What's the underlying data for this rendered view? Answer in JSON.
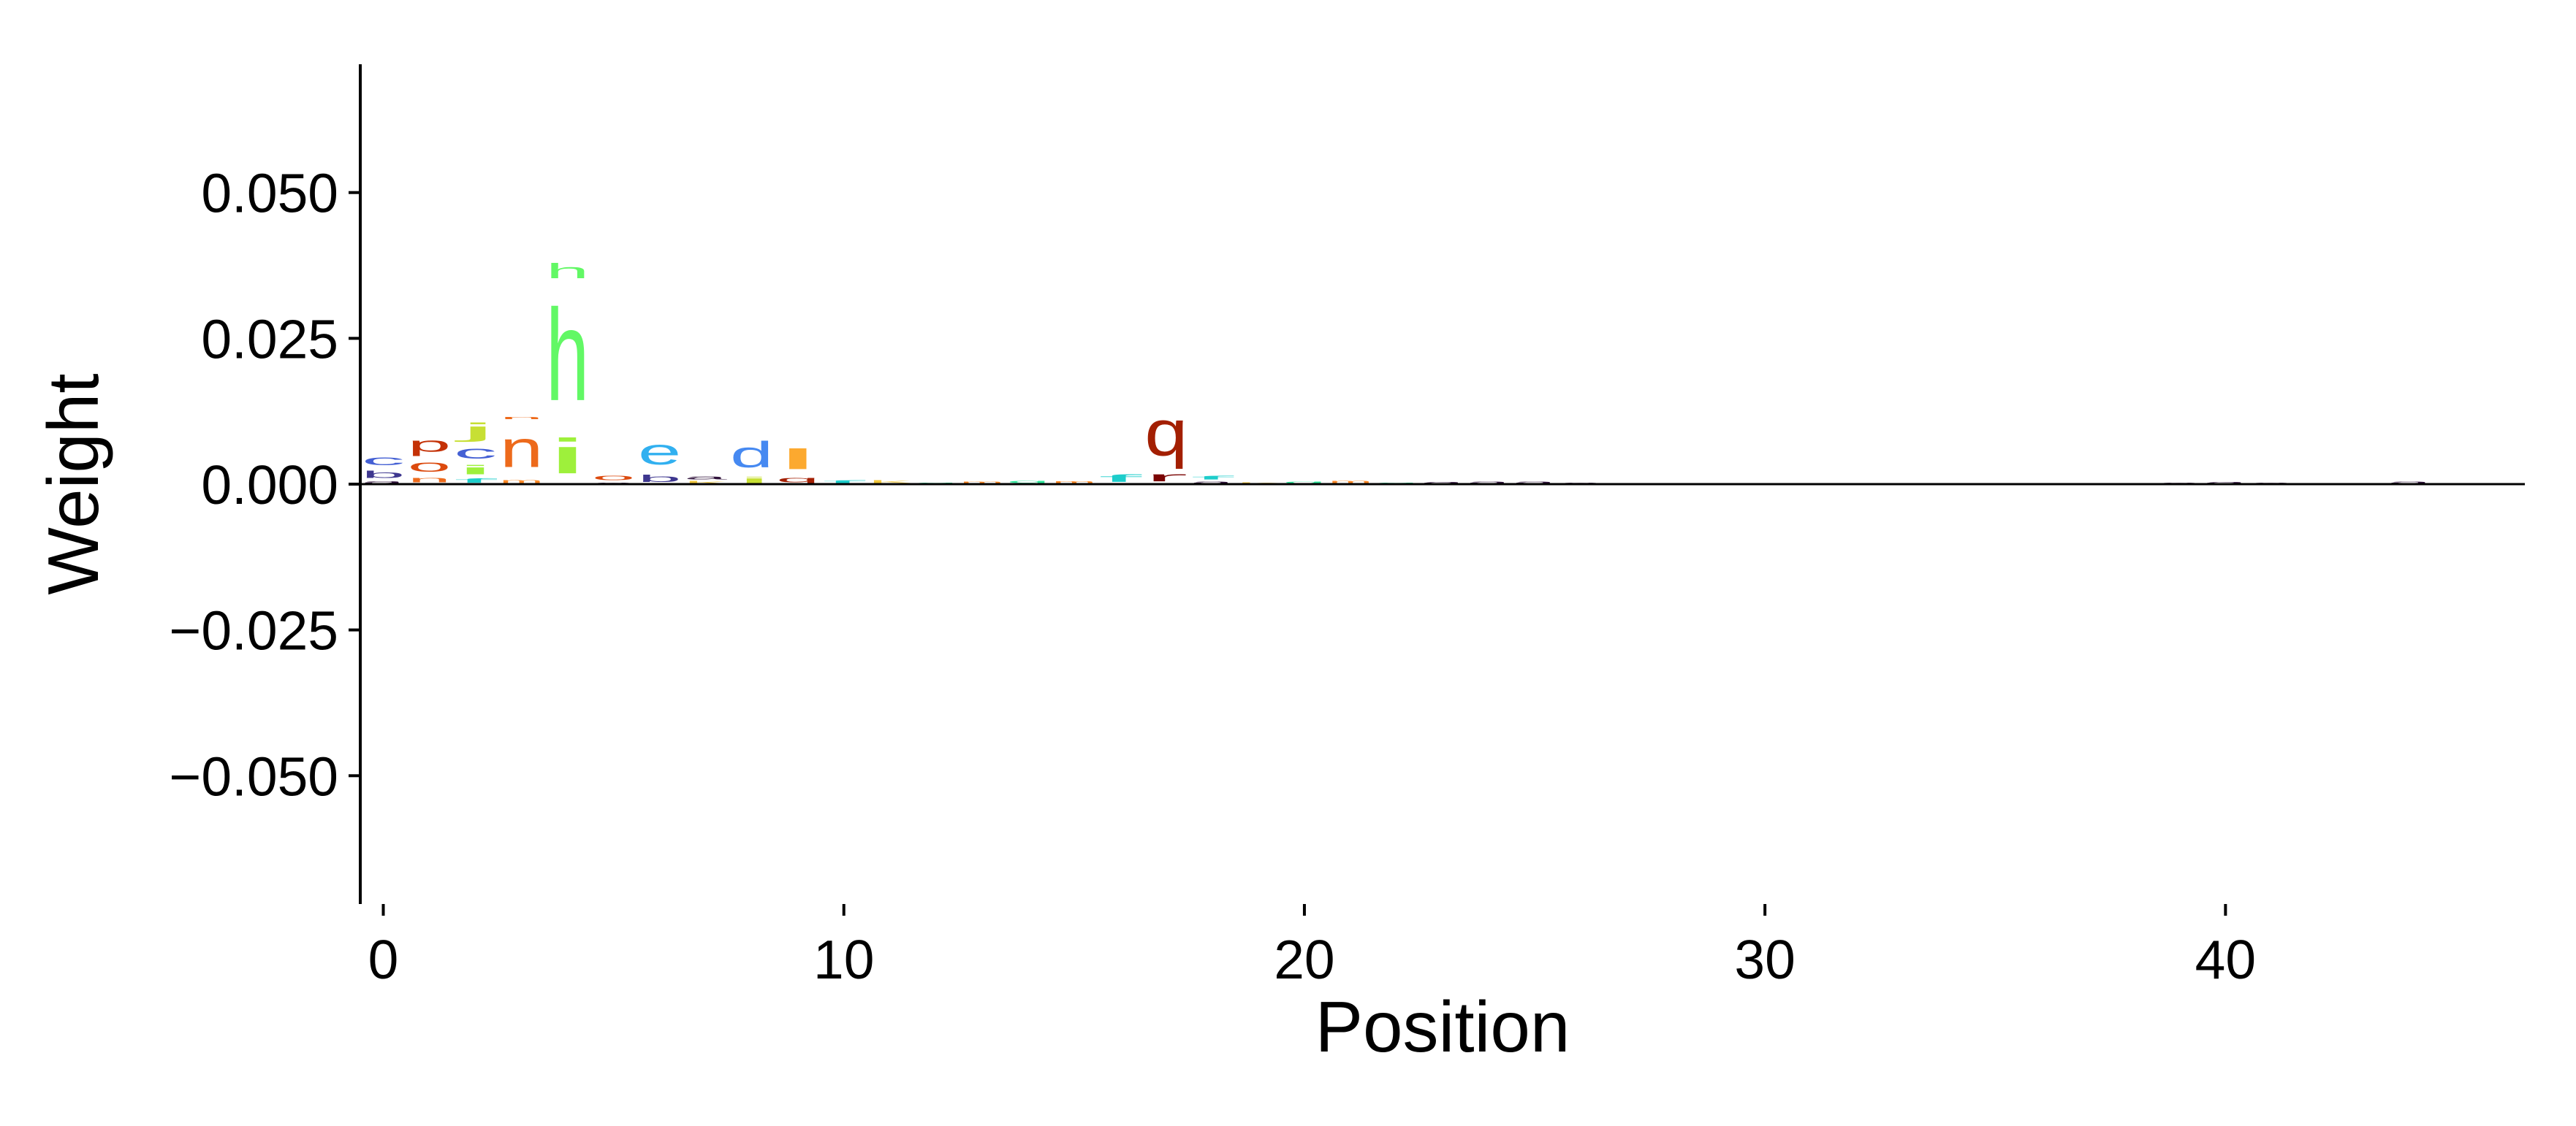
{
  "chart_data": {
    "type": "sequence-logo",
    "xlabel": "Position",
    "ylabel": "Weight",
    "xlim": [
      -0.5,
      46.5
    ],
    "ylim": [
      -0.072,
      0.072
    ],
    "xticks": [
      0,
      10,
      20,
      30,
      40
    ],
    "xtick_labels": [
      "0",
      "10",
      "20",
      "30",
      "40"
    ],
    "yticks": [
      0.05,
      0.025,
      0,
      -0.025,
      -0.05
    ],
    "ytick_labels": [
      "0.050",
      "0.025",
      "0.000",
      "−0.025",
      "−0.050"
    ],
    "grid": false,
    "legend": "none",
    "colors": {
      "a": "#30123b",
      "b": "#3e378f",
      "c": "#4460d4",
      "d": "#4689f1",
      "e": "#31b0f0",
      "f": "#1dcdcb",
      "g": "#2ee59a",
      "h": "#62f865",
      "i": "#9ef03b",
      "j": "#c7df34",
      "k": "#f0c63b",
      "l": "#fca92f",
      "m": "#f98725",
      "n": "#ed6a1b",
      "o": "#dc4a0e",
      "p": "#c43106",
      "q": "#a31f02",
      "r": "#7a0403"
    },
    "stacks": [
      [
        {
          "c": "a",
          "v": 0.0007
        },
        {
          "c": "b",
          "v": 0.002
        },
        {
          "c": "c",
          "v": 0.0027
        }
      ],
      [
        {
          "c": "n",
          "v": 0.0015
        },
        {
          "c": "o",
          "v": 0.0033
        },
        {
          "c": "p",
          "v": 0.004
        }
      ],
      [
        {
          "c": "f",
          "v": 0.0012
        },
        {
          "c": "i",
          "v": 0.0025
        },
        {
          "c": "c",
          "v": 0.0035
        },
        {
          "c": "j",
          "v": 0.004
        }
      ],
      [
        {
          "c": "m",
          "v": 0.001
        },
        {
          "c": "n",
          "v": 0.01
        },
        {
          "c": "n",
          "v": 0.0008
        }
      ],
      [
        {
          "c": "i",
          "v": 0.0095
        },
        {
          "c": "h",
          "v": 0.025
        },
        {
          "c": "h",
          "v": 0.004
        }
      ],
      [
        {
          "c": "a",
          "v": 0.0004
        },
        {
          "c": "o",
          "v": 0.0015
        }
      ],
      [
        {
          "c": "b",
          "v": 0.002
        },
        {
          "c": "e",
          "v": 0.007
        }
      ],
      [
        {
          "c": "k",
          "v": 0.0006
        },
        {
          "c": "a",
          "v": 0.001
        }
      ],
      [
        {
          "c": "j",
          "v": 0.0015
        },
        {
          "c": "d",
          "v": 0.007
        }
      ],
      [
        {
          "c": "q",
          "v": 0.0015
        },
        {
          "c": "l",
          "v": 0.0055
        }
      ],
      [
        {
          "c": "f",
          "v": 0.0008
        }
      ],
      [
        {
          "c": "k",
          "v": 0.0008
        }
      ],
      [
        {
          "c": "g",
          "v": 0.0004
        }
      ],
      [
        {
          "c": "m",
          "v": 0.0006
        }
      ],
      [
        {
          "c": "g",
          "v": 0.0008
        }
      ],
      [
        {
          "c": "m",
          "v": 0.0007
        }
      ],
      [
        {
          "c": "f",
          "v": 0.002
        }
      ],
      [
        {
          "c": "r",
          "v": 0.0025
        },
        {
          "c": "q",
          "v": 0.0125
        }
      ],
      [
        {
          "c": "a",
          "v": 0.0006
        },
        {
          "c": "f",
          "v": 0.001
        }
      ],
      [
        {
          "c": "k",
          "v": 0.0004
        }
      ],
      [
        {
          "c": "g",
          "v": 0.0006
        }
      ],
      [
        {
          "c": "m",
          "v": 0.0008
        }
      ],
      [
        {
          "c": "g",
          "v": 0.0004
        }
      ],
      [
        {
          "c": "a",
          "v": 0.0005
        }
      ],
      [
        {
          "c": "a",
          "v": 0.0006
        }
      ],
      [
        {
          "c": "a",
          "v": 0.0006
        }
      ],
      [
        {
          "c": "a",
          "v": 0.0004
        }
      ],
      [
        {
          "c": "a",
          "v": 0.0003
        }
      ],
      [
        {
          "c": "a",
          "v": 0.0002
        }
      ],
      [
        {
          "c": "a",
          "v": 0.0001
        }
      ],
      [
        {
          "c": "a",
          "v": 0.0001
        }
      ],
      [
        {
          "c": "a",
          "v": 0.0001
        }
      ],
      [
        {
          "c": "a",
          "v": 0.0002
        }
      ],
      [
        {
          "c": "a",
          "v": 0.0002
        }
      ],
      [
        {
          "c": "a",
          "v": 0.0002
        }
      ],
      [
        {
          "c": "a",
          "v": 0.0002
        }
      ],
      [
        {
          "c": "a",
          "v": 0.0002
        }
      ],
      [
        {
          "c": "a",
          "v": 0.0002
        }
      ],
      [
        {
          "c": "a",
          "v": 0.0003
        }
      ],
      [
        {
          "c": "a",
          "v": 0.0004
        }
      ],
      [
        {
          "c": "a",
          "v": 0.0005
        }
      ],
      [
        {
          "c": "a",
          "v": 0.0004
        }
      ],
      [
        {
          "c": "a",
          "v": 0.0002
        }
      ],
      [
        {
          "c": "a",
          "v": 0.0002
        }
      ],
      [
        {
          "c": "a",
          "v": 0.0006
        }
      ],
      [
        {
          "c": "a",
          "v": 0.0002
        }
      ],
      [
        {
          "c": "a",
          "v": 0.0001
        }
      ]
    ]
  }
}
